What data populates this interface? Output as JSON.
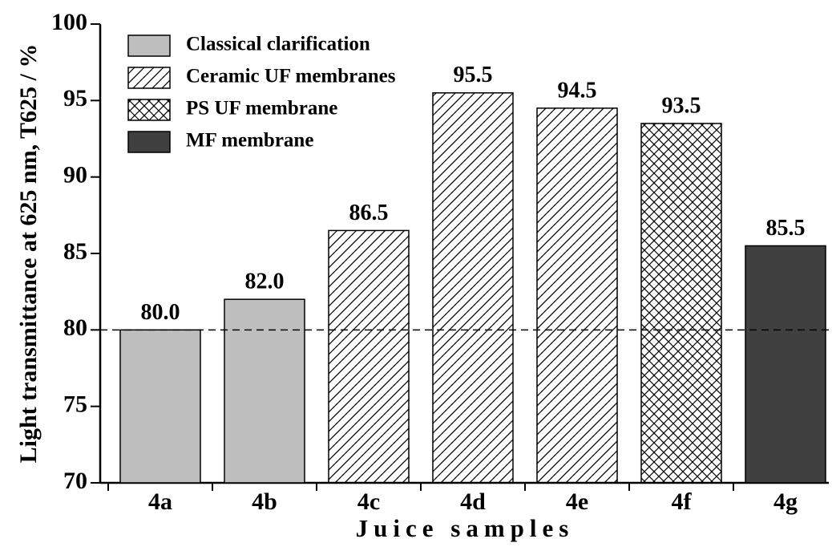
{
  "chart_data": {
    "type": "bar",
    "xlabel": "Juice samples",
    "ylabel": "Light transmittance at 625 nm, T625 / %",
    "categories": [
      "4a",
      "4b",
      "4c",
      "4d",
      "4e",
      "4f",
      "4g"
    ],
    "series": [
      {
        "name": "Classical clarification",
        "color": "#bebebe",
        "pattern": "solid",
        "values": [
          80.0,
          82.0,
          null,
          null,
          null,
          null,
          null
        ],
        "value_labels": [
          "80.0",
          "82.0",
          null,
          null,
          null,
          null,
          null
        ]
      },
      {
        "name": "Ceramic UF membranes",
        "color": "#000000",
        "pattern": "hatch",
        "values": [
          null,
          null,
          86.5,
          95.5,
          94.5,
          null,
          null
        ],
        "value_labels": [
          null,
          null,
          "86.5",
          "95.5",
          "94.5",
          null,
          null
        ]
      },
      {
        "name": "PS UF membrane",
        "color": "#000000",
        "pattern": "crosshatch",
        "values": [
          null,
          null,
          null,
          null,
          null,
          93.5,
          null
        ],
        "value_labels": [
          null,
          null,
          null,
          null,
          null,
          "93.5",
          null
        ]
      },
      {
        "name": "MF membrane",
        "color": "#404040",
        "pattern": "solid",
        "values": [
          null,
          null,
          null,
          null,
          null,
          null,
          85.5
        ],
        "value_labels": [
          null,
          null,
          null,
          null,
          null,
          null,
          "85.5"
        ]
      }
    ],
    "reference_line": 80,
    "ylim": [
      70,
      100
    ],
    "yticks": [
      70,
      75,
      80,
      85,
      90,
      95,
      100
    ],
    "legend": "upper left"
  }
}
